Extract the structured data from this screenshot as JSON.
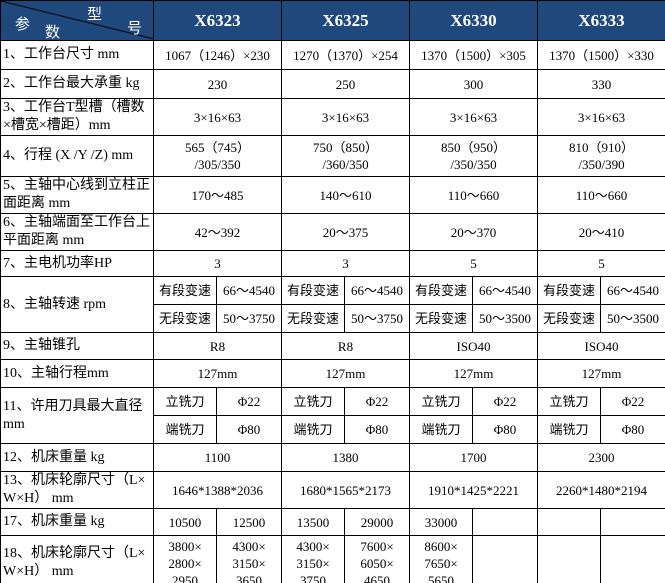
{
  "corner": {
    "top": [
      "型",
      "号"
    ],
    "bottom": [
      "参",
      "数"
    ]
  },
  "models": [
    "X6323",
    "X6325",
    "X6330",
    "X6333"
  ],
  "colors": {
    "header_bg": "#1f497d",
    "header_text": "#ffffff"
  },
  "rows": [
    {
      "label": "1、工作台尺寸 mm",
      "type": "full",
      "cells": [
        "1067（1246）×230",
        "1270（1370）×254",
        "1370（1500）×305",
        "1370（1500）×330"
      ]
    },
    {
      "label": "2、工作台最大承重 kg",
      "type": "full",
      "cells": [
        "230",
        "250",
        "300",
        "330"
      ]
    },
    {
      "label": "3、工作台T型槽（槽数\n×槽宽×槽距）mm",
      "type": "full",
      "cells": [
        "3×16×63",
        "3×16×63",
        "3×16×63",
        "3×16×63"
      ]
    },
    {
      "label": "4、行程  (X /Y /Z) mm",
      "type": "full",
      "cells": [
        "565（745）\n/305/350",
        "750（850）\n/360/350",
        "850（950）\n/350/350",
        "810（910）\n/350/390"
      ]
    },
    {
      "label": "5、主轴中心线到立柱正\n面距离 mm",
      "type": "full",
      "cells": [
        "170～485",
        "140～610",
        "110～660",
        "110～660"
      ]
    },
    {
      "label": "6、主轴端面至工作台上\n平面距离 mm",
      "type": "full",
      "cells": [
        "42～392",
        "20～375",
        "20～370",
        "20～410"
      ]
    },
    {
      "label": "7、主电机功率HP",
      "type": "full",
      "cells": [
        "3",
        "3",
        "5",
        "5"
      ]
    },
    {
      "label": "8、主轴转速   rpm",
      "type": "split",
      "sub": [
        [
          "有段变速",
          "66～4540",
          "有段变速",
          "66～4540",
          "有段变速",
          "66～4540",
          "有段变速",
          "66～4540"
        ],
        [
          "无段变速",
          "50～3750",
          "无段变速",
          "50～3750",
          "无段变速",
          "50～3500",
          "无段变速",
          "50～3500"
        ]
      ]
    },
    {
      "label": "9、主轴锥孔",
      "type": "full",
      "cells": [
        "R8",
        "R8",
        "ISO40",
        "ISO40"
      ]
    },
    {
      "label": "10、主轴行程mm",
      "type": "full",
      "cells": [
        "127mm",
        "127mm",
        "127mm",
        "127mm"
      ]
    },
    {
      "label": "11、许用刀具最大直径\nmm",
      "type": "split",
      "sub": [
        [
          "立铣刀",
          "Φ22",
          "立铣刀",
          "Φ22",
          "立铣刀",
          "Φ22",
          "立铣刀",
          "Φ22"
        ],
        [
          "端铣刀",
          "Φ80",
          "端铣刀",
          "Φ80",
          "端铣刀",
          "Φ80",
          "端铣刀",
          "Φ80"
        ]
      ]
    },
    {
      "label": "12、机床重量 kg",
      "type": "full",
      "cells": [
        "1100",
        "1380",
        "1700",
        "2300"
      ]
    },
    {
      "label": "13、机床轮廓尺寸（L×\nW×H） mm",
      "type": "full",
      "cells": [
        "1646*1388*2036",
        "1680*1565*2173",
        "1910*1425*2221",
        "2260*1480*2194"
      ]
    },
    {
      "label": "17、机床重量 kg",
      "type": "half",
      "cells": [
        "10500",
        "12500",
        "13500",
        "29000",
        "33000",
        "",
        "",
        ""
      ]
    },
    {
      "label": "18、机床轮廓尺寸（L×\nW×H） mm",
      "type": "half",
      "cells": [
        "3800×\n2800×\n2950",
        "4300×\n3150×\n3650",
        "4300×\n3150×\n3750",
        "7600×\n6050×\n4650",
        "8600×\n7650×\n5650",
        "",
        "",
        ""
      ]
    }
  ]
}
